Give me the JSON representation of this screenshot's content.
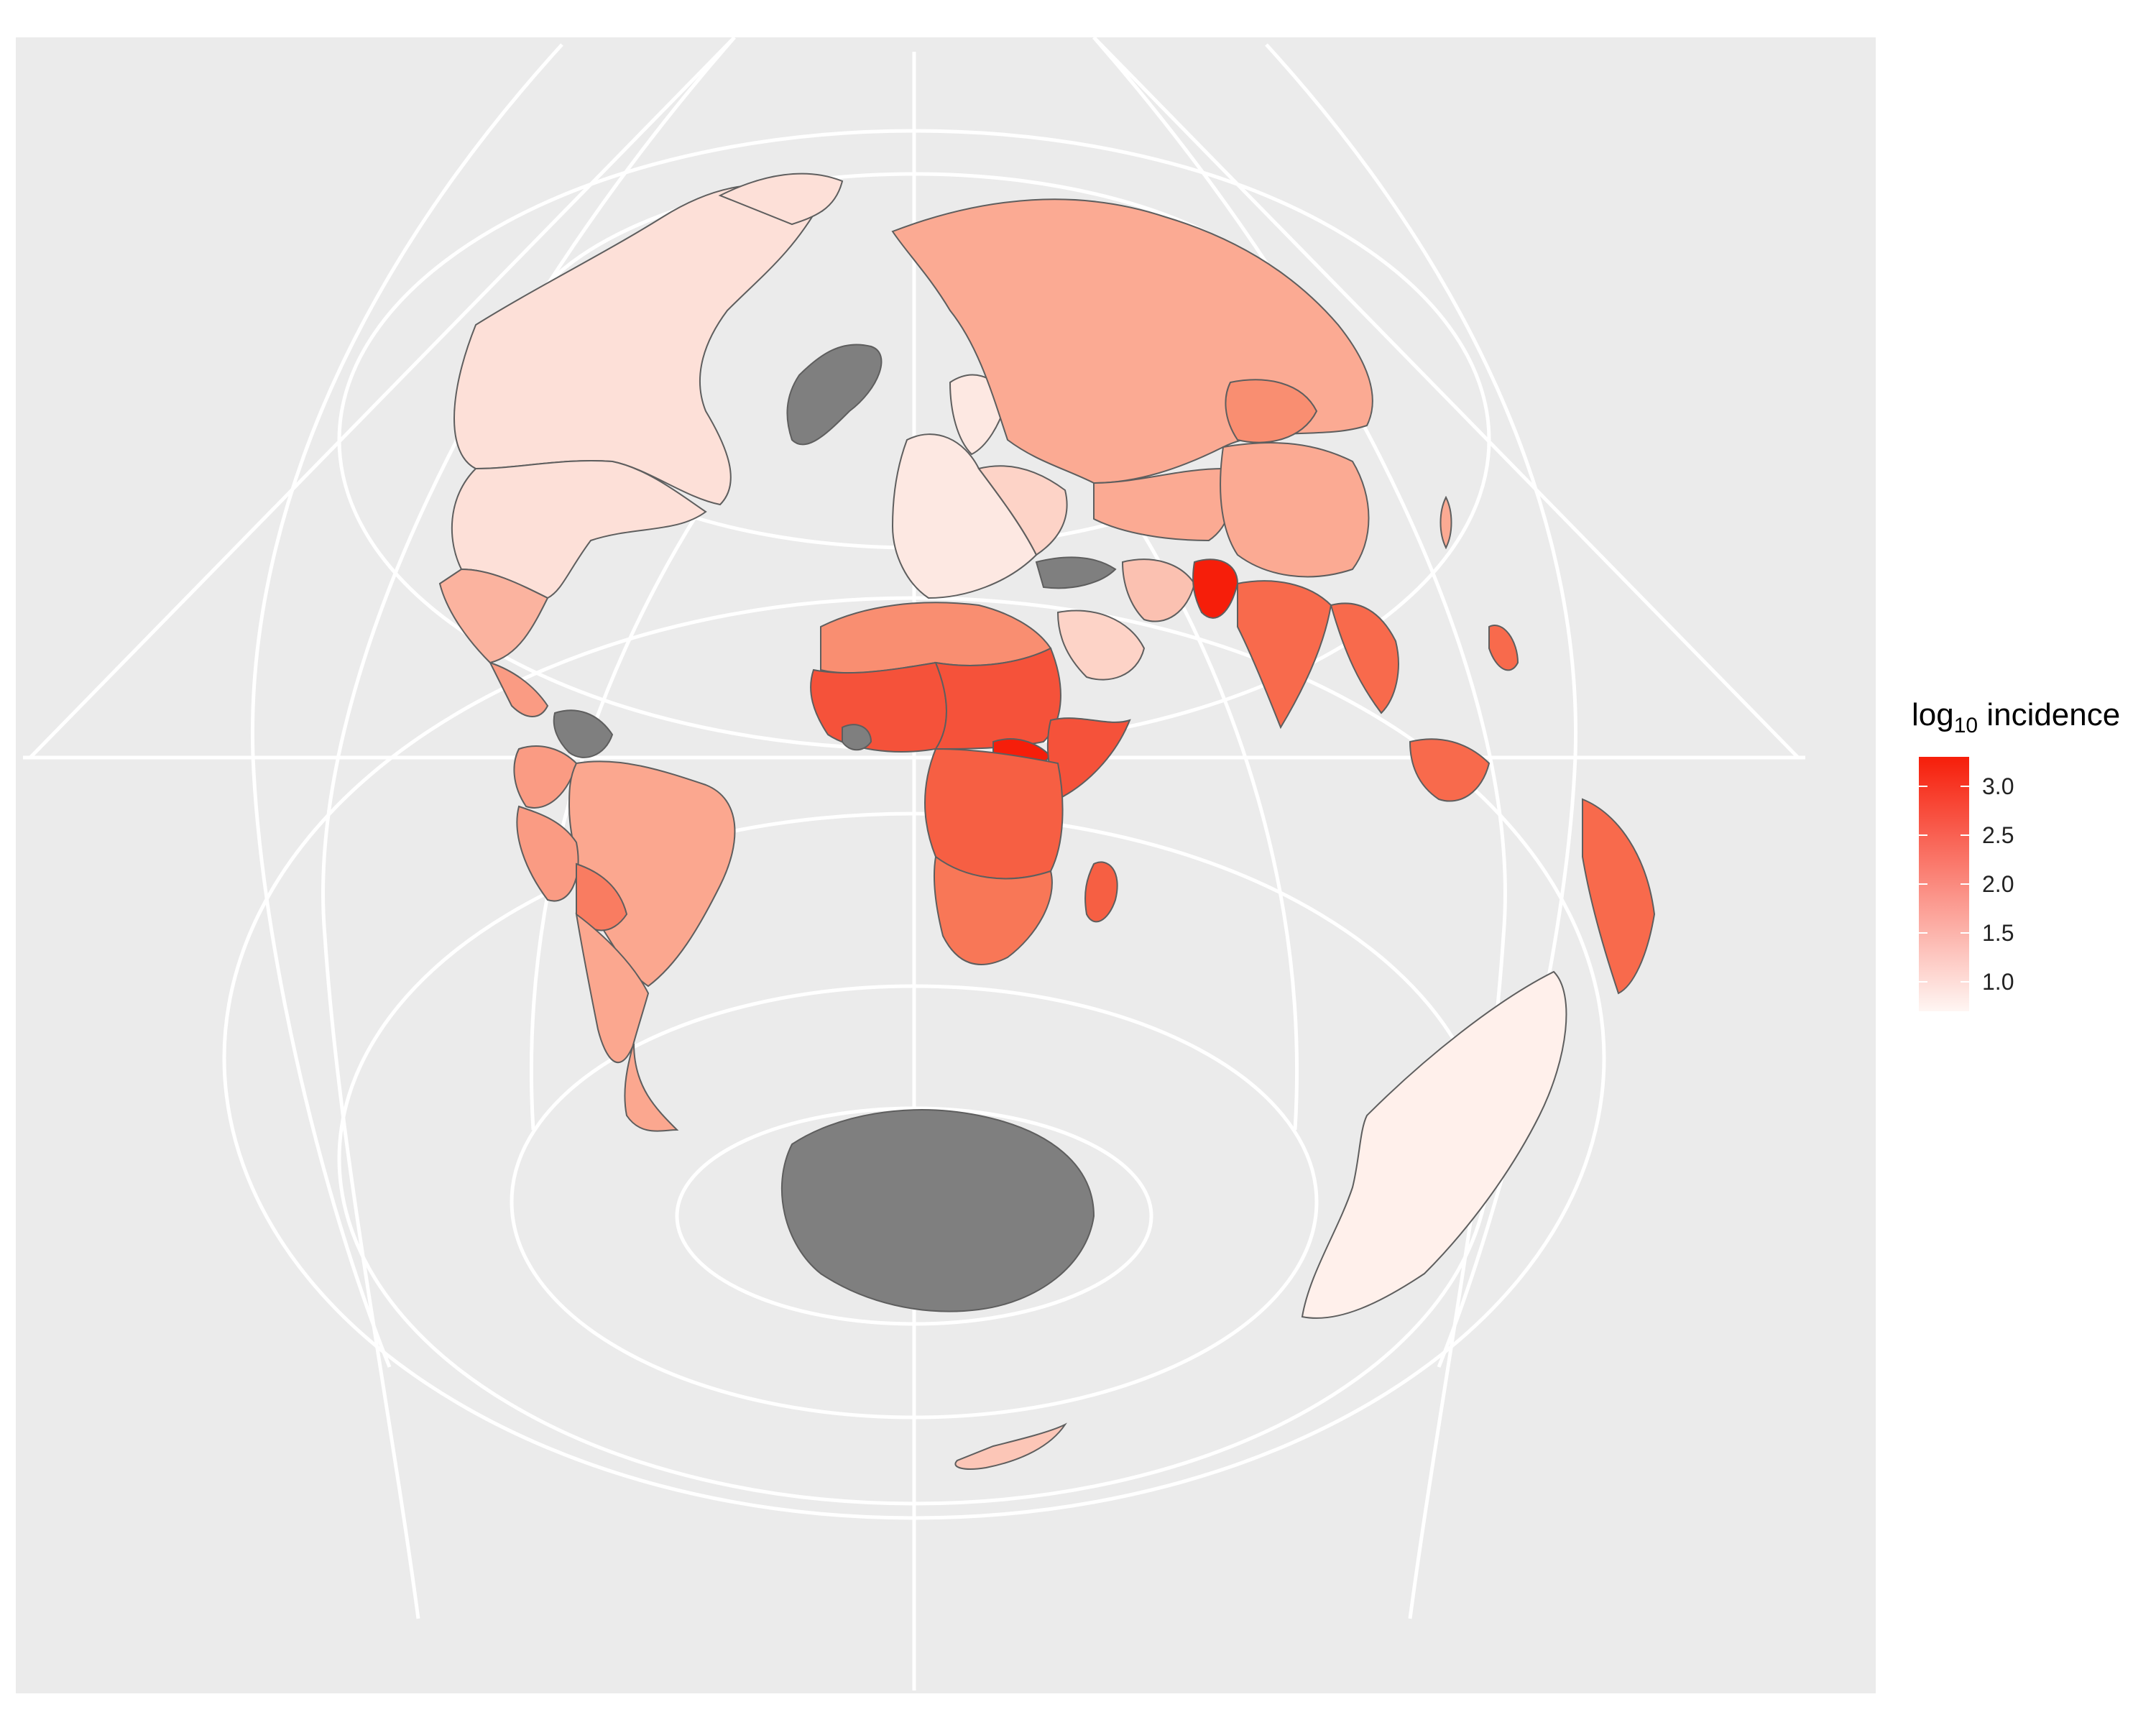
{
  "legend": {
    "title_prefix": "log",
    "title_subscript": "10",
    "title_suffix": " incidence",
    "ticks": [
      "3.0",
      "2.5",
      "2.0",
      "1.5",
      "1.0"
    ],
    "tick_values": [
      3.0,
      2.5,
      2.0,
      1.5,
      1.0
    ],
    "range": [
      0.7,
      3.3
    ],
    "low_color": "#fff6f3",
    "high_color": "#f61e0a"
  },
  "colors": {
    "panel_background": "#ebebeb",
    "graticule": "#ffffff",
    "border": "#5e5e5e",
    "missing": "#7f7f7f"
  }
}
